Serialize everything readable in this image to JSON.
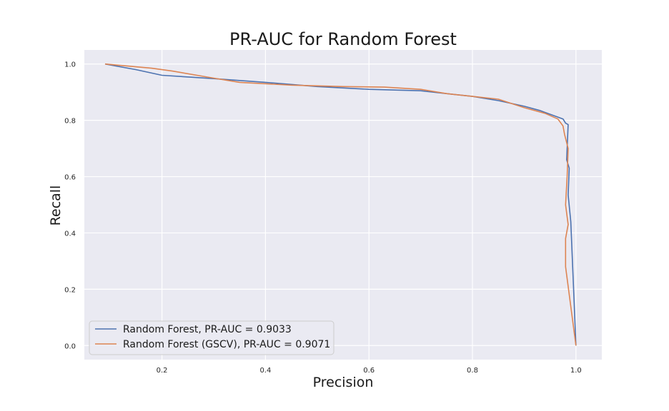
{
  "chart_data": {
    "type": "line",
    "title": "PR-AUC for Random Forest",
    "xlabel": "Precision",
    "ylabel": "Recall",
    "xlim": [
      0.05,
      1.05
    ],
    "ylim": [
      -0.05,
      1.05
    ],
    "xticks": [
      0.2,
      0.4,
      0.6,
      0.8,
      1.0
    ],
    "yticks": [
      0.0,
      0.2,
      0.4,
      0.6,
      0.8,
      1.0
    ],
    "xtick_labels": [
      "0.2",
      "0.4",
      "0.6",
      "0.8",
      "1.0"
    ],
    "ytick_labels": [
      "0.0",
      "0.2",
      "0.4",
      "0.6",
      "0.8",
      "1.0"
    ],
    "grid": true,
    "background": "#eaeaf2",
    "legend_position": "lower-left",
    "series": [
      {
        "name": "Random Forest, PR-AUC = 0.9033",
        "color": "#4c72b0",
        "points": [
          [
            0.09,
            1.0
          ],
          [
            0.15,
            0.98
          ],
          [
            0.2,
            0.96
          ],
          [
            0.3,
            0.948
          ],
          [
            0.4,
            0.935
          ],
          [
            0.5,
            0.92
          ],
          [
            0.6,
            0.91
          ],
          [
            0.7,
            0.905
          ],
          [
            0.75,
            0.895
          ],
          [
            0.8,
            0.885
          ],
          [
            0.85,
            0.87
          ],
          [
            0.9,
            0.85
          ],
          [
            0.93,
            0.835
          ],
          [
            0.96,
            0.815
          ],
          [
            0.975,
            0.805
          ],
          [
            0.98,
            0.79
          ],
          [
            0.985,
            0.785
          ],
          [
            0.982,
            0.66
          ],
          [
            0.987,
            0.63
          ],
          [
            0.985,
            0.535
          ],
          [
            0.99,
            0.44
          ],
          [
            1.0,
            0.0
          ]
        ]
      },
      {
        "name": "Random Forest (GSCV), PR-AUC = 0.9071",
        "color": "#dd8452",
        "points": [
          [
            0.09,
            1.0
          ],
          [
            0.18,
            0.985
          ],
          [
            0.22,
            0.975
          ],
          [
            0.3,
            0.95
          ],
          [
            0.35,
            0.935
          ],
          [
            0.45,
            0.925
          ],
          [
            0.55,
            0.92
          ],
          [
            0.63,
            0.918
          ],
          [
            0.7,
            0.91
          ],
          [
            0.75,
            0.895
          ],
          [
            0.8,
            0.885
          ],
          [
            0.85,
            0.875
          ],
          [
            0.9,
            0.845
          ],
          [
            0.94,
            0.825
          ],
          [
            0.965,
            0.805
          ],
          [
            0.975,
            0.78
          ],
          [
            0.978,
            0.75
          ],
          [
            0.985,
            0.7
          ],
          [
            0.983,
            0.6
          ],
          [
            0.98,
            0.5
          ],
          [
            0.985,
            0.43
          ],
          [
            0.98,
            0.38
          ],
          [
            0.98,
            0.28
          ],
          [
            1.0,
            0.0
          ]
        ]
      }
    ]
  }
}
